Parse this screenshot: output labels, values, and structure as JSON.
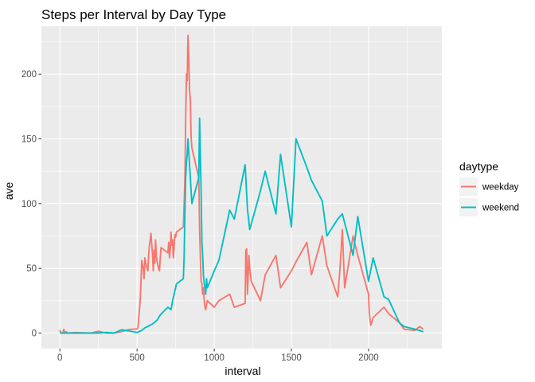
{
  "chart_data": {
    "type": "line",
    "title": "Steps per Interval by Day Type",
    "xlabel": "interval",
    "ylabel": "ave",
    "xlim": [
      -120,
      2475
    ],
    "ylim": [
      -12,
      237
    ],
    "xticks": [
      0,
      500,
      1000,
      1500,
      2000
    ],
    "yticks": [
      0,
      50,
      100,
      150,
      200
    ],
    "grid": true,
    "legend": {
      "title": "daytype",
      "position": "right"
    },
    "series": [
      {
        "name": "weekday",
        "color": "#F8766D",
        "x": [
          0,
          5,
          10,
          15,
          20,
          25,
          30,
          40,
          50,
          100,
          150,
          200,
          250,
          300,
          350,
          400,
          450,
          500,
          505,
          510,
          515,
          520,
          525,
          530,
          540,
          545,
          550,
          555,
          560,
          570,
          575,
          580,
          585,
          590,
          600,
          605,
          610,
          615,
          620,
          625,
          630,
          640,
          645,
          650,
          655,
          700,
          705,
          710,
          715,
          720,
          725,
          730,
          735,
          740,
          745,
          750,
          755,
          800,
          805,
          810,
          815,
          820,
          825,
          830,
          835,
          840,
          845,
          850,
          855,
          900,
          905,
          910,
          915,
          920,
          925,
          930,
          935,
          940,
          945,
          950,
          955,
          1000,
          1030,
          1100,
          1130,
          1200,
          1205,
          1210,
          1215,
          1220,
          1225,
          1230,
          1240,
          1300,
          1330,
          1400,
          1430,
          1500,
          1530,
          1600,
          1630,
          1700,
          1730,
          1800,
          1815,
          1830,
          1845,
          1900,
          1930,
          2000,
          2005,
          2010,
          2015,
          2020,
          2030,
          2100,
          2130,
          2200,
          2230,
          2300,
          2330,
          2355
        ],
        "y": [
          2.3,
          0.5,
          0.2,
          0.2,
          0.1,
          2.9,
          0.6,
          1.1,
          0,
          0.4,
          0.2,
          0,
          1.4,
          0,
          0,
          1.1,
          2.8,
          3.2,
          4.0,
          10.0,
          18.0,
          25.0,
          38.0,
          56.0,
          50.0,
          42.0,
          58.0,
          55.0,
          52.0,
          48.0,
          60.0,
          68.0,
          72.0,
          77.0,
          60.0,
          48.0,
          64.0,
          54.0,
          72.0,
          60.0,
          55.0,
          50.0,
          48.0,
          58.0,
          66.0,
          62.0,
          70.0,
          58.0,
          65.0,
          78.0,
          68.0,
          72.0,
          58.0,
          66.0,
          76.0,
          74.0,
          78.0,
          82.0,
          100.0,
          120.0,
          165.0,
          200.0,
          195.0,
          230.0,
          213.0,
          188.0,
          180.0,
          152.0,
          143.0,
          120.0,
          80.0,
          60.0,
          40.0,
          38.0,
          30.0,
          35.0,
          25.0,
          20.0,
          18.0,
          22.0,
          25.0,
          20.0,
          25.0,
          30.0,
          20.0,
          23.0,
          64.0,
          65.0,
          30.0,
          44.0,
          60.0,
          50.0,
          40.0,
          25.0,
          45.0,
          60.0,
          35.0,
          48.0,
          55.0,
          70.0,
          45.0,
          75.0,
          52.0,
          28.0,
          50.0,
          80.0,
          35.0,
          75.0,
          60.0,
          30.0,
          15.0,
          10.0,
          6.0,
          8.0,
          12.0,
          20.0,
          15.0,
          8.0,
          3.0,
          2.0,
          5.0,
          3.0
        ]
      },
      {
        "name": "weekend",
        "color": "#00BFC4",
        "x": [
          0,
          5,
          10,
          15,
          20,
          30,
          50,
          100,
          150,
          200,
          250,
          300,
          350,
          400,
          450,
          500,
          530,
          550,
          600,
          630,
          650,
          700,
          720,
          730,
          740,
          750,
          755,
          800,
          805,
          810,
          815,
          820,
          825,
          830,
          835,
          840,
          845,
          850,
          855,
          900,
          905,
          910,
          915,
          920,
          925,
          930,
          935,
          940,
          945,
          950,
          955,
          1000,
          1030,
          1100,
          1130,
          1200,
          1215,
          1230,
          1300,
          1330,
          1400,
          1430,
          1500,
          1530,
          1600,
          1630,
          1700,
          1730,
          1800,
          1830,
          1900,
          1930,
          2000,
          2030,
          2100,
          2130,
          2200,
          2230,
          2300,
          2330,
          2355
        ],
        "y": [
          0.2,
          0,
          0,
          0,
          0,
          0,
          0,
          0,
          0,
          0,
          0,
          0.5,
          0,
          2.5,
          1.5,
          0.5,
          2.0,
          4.0,
          7.0,
          10.0,
          14.0,
          20.0,
          18.0,
          25.0,
          30.0,
          35.0,
          38.0,
          42.0,
          60.0,
          95.0,
          120.0,
          132.0,
          138.0,
          150.0,
          140.0,
          130.0,
          120.0,
          110.0,
          100.0,
          120.0,
          166.0,
          140.0,
          110.0,
          70.0,
          60.0,
          45.0,
          38.0,
          35.0,
          30.0,
          42.0,
          35.0,
          48.0,
          56.0,
          95.0,
          88.0,
          130.0,
          96.0,
          80.0,
          110.0,
          125.0,
          92.0,
          138.0,
          82.0,
          150.0,
          128.0,
          118.0,
          102.0,
          75.0,
          88.0,
          92.0,
          60.0,
          90.0,
          40.0,
          58.0,
          28.0,
          26.0,
          8.0,
          5.0,
          3.0,
          2.0,
          1.0
        ]
      }
    ]
  }
}
